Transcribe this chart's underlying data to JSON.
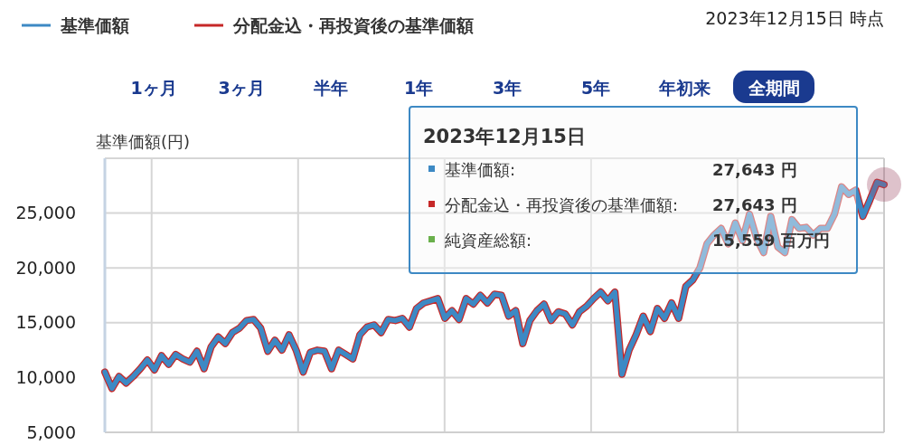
{
  "chart_data": {
    "type": "line",
    "subtitle": "2023年12月15日 時点",
    "ylabel": "基準価額(円)",
    "legend": "top left",
    "grid": true,
    "tick_labels": "y",
    "categories": [
      null,
      null,
      null,
      null,
      null,
      null,
      null,
      null,
      null,
      null,
      null,
      null,
      null,
      null,
      null,
      null,
      null,
      null,
      null,
      null,
      null,
      null,
      null,
      null,
      null,
      null,
      null,
      null,
      null,
      null,
      null,
      null,
      null,
      null,
      null,
      null,
      null,
      null,
      null,
      null,
      null,
      null,
      null,
      null,
      null,
      null,
      null,
      null,
      null,
      null,
      null,
      null,
      null,
      null,
      null,
      null,
      null,
      null,
      null,
      null,
      null,
      null,
      null,
      null,
      null,
      null,
      null,
      null,
      null,
      null,
      null,
      null,
      null,
      null,
      null,
      null,
      null,
      null,
      null,
      null,
      null,
      null,
      null,
      null,
      null,
      null,
      null,
      null,
      null,
      null,
      null,
      null,
      null,
      null,
      null,
      null,
      null,
      null,
      null,
      null,
      null,
      null,
      null,
      null,
      null,
      null,
      null,
      null,
      null,
      null,
      null
    ],
    "ylim": [
      5000,
      30000
    ],
    "yticks": [
      {
        "value": 5000,
        "label": "5,000"
      },
      {
        "value": 10000,
        "label": "10,000"
      },
      {
        "value": 15000,
        "label": "15,000"
      },
      {
        "value": 20000,
        "label": "20,000"
      },
      {
        "value": 25000,
        "label": "25,000"
      },
      {
        "value": 30000,
        "label": null
      }
    ],
    "series": [
      {
        "name": "分配金込・再投資後の基準価額",
        "color": "#c62828",
        "values": [
          10500,
          9000,
          10100,
          9500,
          10100,
          10800,
          11600,
          10700,
          12000,
          11200,
          12100,
          11700,
          11400,
          12400,
          10800,
          12800,
          13700,
          13100,
          14100,
          14500,
          15200,
          15300,
          14500,
          12400,
          13400,
          12500,
          13900,
          12500,
          10500,
          12300,
          12500,
          12400,
          10800,
          12500,
          12100,
          11700,
          13900,
          14600,
          14800,
          14100,
          15300,
          15200,
          15400,
          14600,
          16300,
          16800,
          17000,
          17200,
          15400,
          16100,
          15300,
          17200,
          16700,
          17500,
          16800,
          17600,
          17500,
          15600,
          16100,
          13100,
          15200,
          16100,
          16700,
          15200,
          16000,
          15800,
          14800,
          16000,
          16500,
          17200,
          17800,
          17000,
          17800,
          10300,
          12500,
          13900,
          15600,
          14200,
          16300,
          15400,
          16800,
          15400,
          18300,
          18900,
          20000,
          22200,
          23000,
          23600,
          22200,
          24100,
          22500,
          24900,
          22700,
          21400,
          24700,
          21900,
          21400,
          24400,
          23600,
          23700,
          23000,
          23600,
          23600,
          24900,
          27400,
          26700,
          27100,
          24700,
          26200,
          27800,
          27600
        ]
      },
      {
        "name": "基準価額",
        "color": "#3d89c4",
        "values": [
          10500,
          9000,
          10100,
          9500,
          10100,
          10800,
          11600,
          10700,
          12000,
          11200,
          12100,
          11700,
          11400,
          12400,
          10800,
          12800,
          13700,
          13100,
          14100,
          14500,
          15200,
          15300,
          14500,
          12400,
          13400,
          12500,
          13900,
          12500,
          10500,
          12300,
          12500,
          12400,
          10800,
          12500,
          12100,
          11700,
          13900,
          14600,
          14800,
          14100,
          15300,
          15200,
          15400,
          14600,
          16300,
          16800,
          17000,
          17200,
          15400,
          16100,
          15300,
          17200,
          16700,
          17500,
          16800,
          17600,
          17500,
          15600,
          16100,
          13100,
          15200,
          16100,
          16700,
          15200,
          16000,
          15800,
          14800,
          16000,
          16500,
          17200,
          17800,
          17000,
          17800,
          10300,
          12500,
          13900,
          15600,
          14200,
          16300,
          15400,
          16800,
          15400,
          18300,
          18900,
          20000,
          22200,
          23000,
          23600,
          22200,
          24100,
          22500,
          24900,
          22700,
          21400,
          24700,
          21900,
          21400,
          24400,
          23600,
          23700,
          23000,
          23600,
          23600,
          24900,
          27400,
          26700,
          27100,
          24700,
          26200,
          27800,
          27600
        ]
      }
    ],
    "annotations": [
      "1ヶ月",
      "3ヶ月",
      "半年",
      "1年",
      "3年",
      "5年",
      "年初来",
      "全期間",
      "2023年12月15日",
      "基準価額:",
      "27,643 円",
      "分配金込・再投資後の基準価額:",
      "27,643 円",
      "純資産総額:",
      "15,559 百万円"
    ]
  }
}
